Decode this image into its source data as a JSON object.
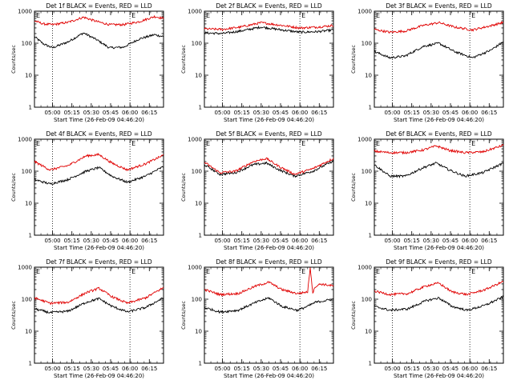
{
  "chart_data": {
    "type": "line",
    "layout": "3x3 grid",
    "shared": {
      "ylabel": "Counts/sec",
      "xlabel": "Start Time (26-Feb-09 04:46:20)",
      "y_scale": "log",
      "ylim": [
        1,
        1000
      ],
      "y_ticks": [
        "1",
        "10",
        "100",
        "1000"
      ],
      "xlim_min_after_start": [
        0,
        100
      ],
      "x_ticks": [
        "05:00",
        "05:15",
        "05:30",
        "05:45",
        "06:00",
        "06:15"
      ],
      "x_tick_min_after_start": [
        14,
        29,
        44,
        59,
        74,
        89
      ],
      "dotted_vlines_min_after_start": [
        14,
        74
      ],
      "corner_markers": [
        "E",
        "E"
      ],
      "series_names": [
        "Events",
        "LLD"
      ],
      "series_colors": {
        "Events": "#000000",
        "LLD": "#e00000"
      }
    },
    "panels": [
      {
        "title": "Det 1f BLACK = Events, RED = LLD",
        "series": [
          {
            "name": "Events",
            "x": [
              0,
              7,
              14,
              26,
              38,
              48,
              58,
              69,
              81,
              93,
              100
            ],
            "values": [
              160,
              95,
              72,
              110,
              210,
              130,
              72,
              75,
              135,
              185,
              160
            ]
          },
          {
            "name": "LLD",
            "x": [
              0,
              7,
              14,
              26,
              38,
              48,
              58,
              69,
              81,
              93,
              100
            ],
            "values": [
              500,
              400,
              380,
              450,
              650,
              480,
              380,
              380,
              470,
              680,
              600
            ]
          }
        ]
      },
      {
        "title": "Det 2f BLACK = Events, RED = LLD",
        "series": [
          {
            "name": "Events",
            "x": [
              0,
              14,
              28,
              44,
              60,
              74,
              88,
              100
            ],
            "values": [
              210,
              200,
              240,
              320,
              260,
              220,
              230,
              260
            ]
          },
          {
            "name": "LLD",
            "x": [
              0,
              14,
              28,
              44,
              60,
              74,
              88,
              100
            ],
            "values": [
              280,
              270,
              320,
              440,
              360,
              300,
              320,
              360
            ]
          }
        ]
      },
      {
        "title": "Det 3f BLACK = Events, RED = LLD",
        "series": [
          {
            "name": "Events",
            "x": [
              0,
              12,
              24,
              38,
              50,
              62,
              76,
              90,
              100
            ],
            "values": [
              55,
              35,
              40,
              80,
              100,
              55,
              35,
              60,
              110
            ]
          },
          {
            "name": "LLD",
            "x": [
              0,
              12,
              24,
              38,
              50,
              62,
              76,
              90,
              100
            ],
            "values": [
              270,
              220,
              240,
              360,
              440,
              320,
              260,
              350,
              450
            ]
          }
        ]
      },
      {
        "title": "Det 4f BLACK = Events, RED = LLD",
        "series": [
          {
            "name": "Events",
            "x": [
              0,
              12,
              26,
              40,
              50,
              60,
              72,
              86,
              100
            ],
            "values": [
              55,
              40,
              55,
              100,
              130,
              70,
              45,
              70,
              140
            ]
          },
          {
            "name": "LLD",
            "x": [
              0,
              12,
              26,
              40,
              50,
              60,
              72,
              86,
              100
            ],
            "values": [
              200,
              110,
              150,
              300,
              330,
              180,
              110,
              170,
              320
            ]
          }
        ]
      },
      {
        "title": "Det 5f BLACK = Events, RED = LLD",
        "series": [
          {
            "name": "Events",
            "x": [
              0,
              12,
              24,
              38,
              48,
              58,
              70,
              84,
              100
            ],
            "values": [
              160,
              80,
              90,
              160,
              180,
              110,
              70,
              100,
              210
            ]
          },
          {
            "name": "LLD",
            "x": [
              0,
              12,
              24,
              38,
              48,
              58,
              70,
              84,
              100
            ],
            "values": [
              190,
              90,
              100,
              200,
              250,
              140,
              80,
              120,
              250
            ]
          }
        ]
      },
      {
        "title": "Det 6f BLACK = Events, RED = LLD",
        "series": [
          {
            "name": "Events",
            "x": [
              0,
              12,
              24,
              38,
              48,
              58,
              70,
              84,
              100
            ],
            "values": [
              160,
              70,
              70,
              130,
              180,
              110,
              70,
              90,
              180
            ]
          },
          {
            "name": "LLD",
            "x": [
              0,
              12,
              24,
              38,
              48,
              58,
              70,
              84,
              100
            ],
            "values": [
              420,
              380,
              380,
              460,
              620,
              450,
              380,
              400,
              650
            ]
          }
        ]
      },
      {
        "title": "Det 7f BLACK = Events, RED = LLD",
        "series": [
          {
            "name": "Events",
            "x": [
              0,
              12,
              26,
              40,
              50,
              60,
              72,
              86,
              100
            ],
            "values": [
              50,
              38,
              42,
              80,
              105,
              60,
              40,
              55,
              110
            ]
          },
          {
            "name": "LLD",
            "x": [
              0,
              12,
              26,
              40,
              50,
              60,
              72,
              86,
              100
            ],
            "values": [
              110,
              75,
              80,
              160,
              220,
              120,
              75,
              110,
              230
            ]
          }
        ]
      },
      {
        "title": "Det 8f BLACK = Events, RED = LLD",
        "series": [
          {
            "name": "Events",
            "x": [
              0,
              12,
              26,
              40,
              50,
              60,
              72,
              80,
              86,
              100
            ],
            "values": [
              55,
              40,
              45,
              80,
              110,
              60,
              45,
              60,
              80,
              100
            ]
          },
          {
            "name": "LLD",
            "x": [
              0,
              12,
              26,
              40,
              50,
              60,
              72,
              80,
              82,
              84,
              86,
              90,
              100
            ],
            "values": [
              200,
              140,
              150,
              260,
              340,
              200,
              150,
              170,
              1000,
              160,
              250,
              300,
              260
            ]
          }
        ]
      },
      {
        "title": "Det 9f BLACK = Events, RED = LLD",
        "series": [
          {
            "name": "Events",
            "x": [
              0,
              12,
              26,
              40,
              50,
              60,
              72,
              86,
              100
            ],
            "values": [
              60,
              45,
              50,
              90,
              110,
              60,
              45,
              65,
              120
            ]
          },
          {
            "name": "LLD",
            "x": [
              0,
              12,
              26,
              40,
              50,
              60,
              72,
              86,
              100
            ],
            "values": [
              180,
              140,
              150,
              260,
              320,
              170,
              140,
              200,
              360
            ]
          }
        ]
      }
    ]
  }
}
